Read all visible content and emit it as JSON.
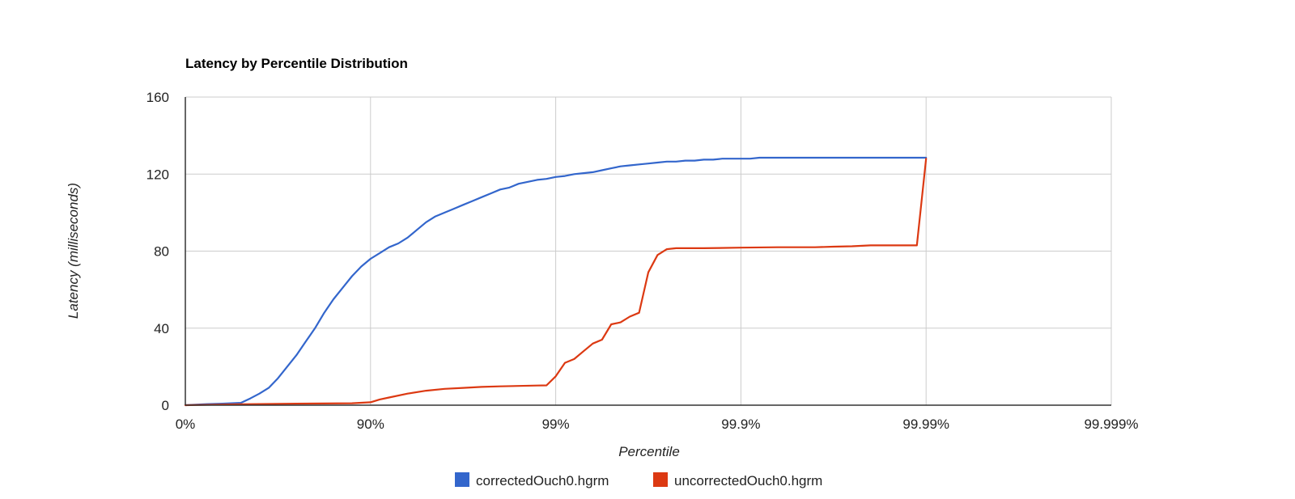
{
  "chart_data": {
    "type": "line",
    "title": "Latency by Percentile Distribution",
    "xlabel": "Percentile",
    "ylabel": "Latency (milliseconds)",
    "x_scale": "log10(1/(1-percentile))",
    "x_ticks": [
      "0%",
      "90%",
      "99%",
      "99.9%",
      "99.99%",
      "99.999%"
    ],
    "y_ticks": [
      "0",
      "40",
      "80",
      "120",
      "160"
    ],
    "ylim": [
      0,
      160
    ],
    "grid": true,
    "legend_position": "bottom",
    "series": [
      {
        "name": "correctedOuch0.hgrm",
        "color": "#3366cc",
        "x": [
          0,
          0.1,
          0.2,
          0.3,
          0.35,
          0.4,
          0.45,
          0.5,
          0.55,
          0.6,
          0.65,
          0.7,
          0.75,
          0.8,
          0.85,
          0.9,
          0.95,
          1.0,
          1.05,
          1.1,
          1.15,
          1.2,
          1.25,
          1.3,
          1.35,
          1.4,
          1.45,
          1.5,
          1.55,
          1.6,
          1.65,
          1.7,
          1.75,
          1.8,
          1.85,
          1.9,
          1.95,
          2.0,
          2.05,
          2.1,
          2.15,
          2.2,
          2.25,
          2.3,
          2.35,
          2.4,
          2.45,
          2.5,
          2.55,
          2.6,
          2.65,
          2.7,
          2.75,
          2.8,
          2.85,
          2.9,
          2.95,
          3.0,
          3.05,
          3.1,
          3.15,
          3.2,
          3.25,
          3.3,
          3.35,
          3.4,
          3.45,
          3.5,
          3.55,
          3.6,
          3.65,
          3.7,
          3.75,
          3.8,
          3.85,
          3.9,
          3.95,
          4.0
        ],
        "y": [
          0,
          0.5,
          0.8,
          1.2,
          3.5,
          6,
          9,
          14,
          20,
          26,
          33,
          40,
          48,
          55,
          61,
          67,
          72,
          76,
          79,
          82,
          84,
          87,
          91,
          95,
          98,
          100,
          102,
          104,
          106,
          108,
          110,
          112,
          113,
          115,
          116,
          117,
          117.5,
          118.5,
          119,
          120,
          120.5,
          121,
          122,
          123,
          124,
          124.5,
          125,
          125.5,
          126,
          126.5,
          126.5,
          127,
          127,
          127.5,
          127.5,
          128,
          128,
          128,
          128,
          128.5,
          128.5,
          128.5,
          128.5,
          128.5,
          128.5,
          128.5,
          128.5,
          128.5,
          128.5,
          128.5,
          128.5,
          128.5,
          128.5,
          128.5,
          128.5,
          128.5,
          128.5,
          128.5
        ]
      },
      {
        "name": "uncorrectedOuch0.hgrm",
        "color": "#dc3912",
        "x": [
          0,
          0.3,
          0.6,
          0.9,
          1.0,
          1.05,
          1.1,
          1.2,
          1.3,
          1.4,
          1.5,
          1.6,
          1.7,
          1.8,
          1.9,
          1.95,
          2.0,
          2.05,
          2.1,
          2.15,
          2.2,
          2.25,
          2.3,
          2.35,
          2.4,
          2.45,
          2.5,
          2.55,
          2.6,
          2.65,
          2.7,
          2.75,
          2.8,
          3.0,
          3.2,
          3.4,
          3.5,
          3.6,
          3.7,
          3.8,
          3.9,
          3.95,
          4.0
        ],
        "y": [
          0,
          0.5,
          0.8,
          1.0,
          1.5,
          3,
          4,
          6,
          7.5,
          8.5,
          9,
          9.5,
          9.8,
          10,
          10.2,
          10.3,
          15,
          22,
          24,
          28,
          32,
          34,
          42,
          43,
          46,
          48,
          69,
          78,
          81,
          81.5,
          81.5,
          81.5,
          81.5,
          81.8,
          82,
          82,
          82.3,
          82.5,
          83,
          83,
          83,
          83,
          128
        ]
      }
    ]
  }
}
